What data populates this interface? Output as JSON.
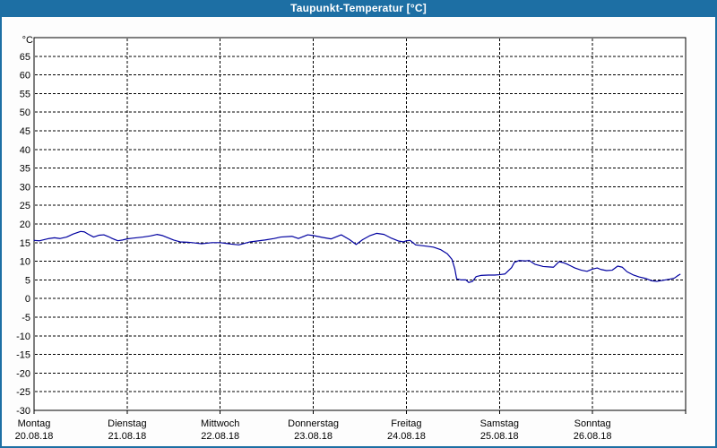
{
  "window": {
    "title": "Taupunkt-Temperatur [°C]",
    "titlebar_color": "#1D6FA4",
    "frame_color": "#1D6FA4",
    "background_color": "#FDFDFD",
    "title_text_color": "#FFFFFF"
  },
  "chart_data": {
    "type": "line",
    "title": "Taupunkt-Temperatur [°C]",
    "grid": {
      "horizontal": "dashed",
      "vertical": "dashed-at-day-boundaries"
    },
    "plot_colors": {
      "plot_background": "#FFFFFF",
      "axis": "#000000",
      "gridline": "#000000",
      "label_text": "#000000"
    },
    "y_axis": {
      "unit_label": "°C",
      "min": -30,
      "max": 70,
      "tick_step": 5,
      "tick_labels": [
        65,
        60,
        55,
        50,
        45,
        40,
        35,
        30,
        25,
        20,
        15,
        10,
        5,
        0,
        -5,
        -10,
        -15,
        -20,
        -25,
        -30
      ]
    },
    "x_axis": {
      "days": [
        {
          "name": "Montag",
          "date": "20.08.18"
        },
        {
          "name": "Dienstag",
          "date": "21.08.18"
        },
        {
          "name": "Mittwoch",
          "date": "22.08.18"
        },
        {
          "name": "Donnerstag",
          "date": "23.08.18"
        },
        {
          "name": "Freitag",
          "date": "24.08.18"
        },
        {
          "name": "Samstag",
          "date": "25.08.18"
        },
        {
          "name": "Sonntag",
          "date": "26.08.18"
        }
      ]
    },
    "series": [
      {
        "name": "Taupunkt-Temperatur",
        "color": "#0000A0",
        "x_unit": "days_since_monday_00h",
        "points": [
          [
            0.0,
            15.6
          ],
          [
            0.06,
            15.5
          ],
          [
            0.16,
            16.1
          ],
          [
            0.22,
            16.3
          ],
          [
            0.28,
            16.1
          ],
          [
            0.35,
            16.5
          ],
          [
            0.42,
            17.3
          ],
          [
            0.5,
            18.0
          ],
          [
            0.54,
            17.9
          ],
          [
            0.58,
            17.3
          ],
          [
            0.64,
            16.5
          ],
          [
            0.7,
            17.0
          ],
          [
            0.75,
            17.1
          ],
          [
            0.8,
            16.6
          ],
          [
            0.84,
            16.1
          ],
          [
            0.9,
            15.5
          ],
          [
            0.95,
            15.7
          ],
          [
            1.0,
            16.0
          ],
          [
            1.06,
            16.2
          ],
          [
            1.17,
            16.5
          ],
          [
            1.25,
            16.8
          ],
          [
            1.32,
            17.2
          ],
          [
            1.38,
            16.9
          ],
          [
            1.44,
            16.3
          ],
          [
            1.5,
            15.7
          ],
          [
            1.57,
            15.2
          ],
          [
            1.65,
            15.1
          ],
          [
            1.7,
            15.0
          ],
          [
            1.8,
            14.7
          ],
          [
            1.91,
            15.0
          ],
          [
            2.0,
            15.0
          ],
          [
            2.12,
            14.6
          ],
          [
            2.2,
            14.4
          ],
          [
            2.32,
            15.2
          ],
          [
            2.48,
            15.7
          ],
          [
            2.58,
            16.1
          ],
          [
            2.65,
            16.5
          ],
          [
            2.77,
            16.7
          ],
          [
            2.84,
            16.1
          ],
          [
            2.94,
            17.1
          ],
          [
            3.0,
            16.9
          ],
          [
            3.1,
            16.4
          ],
          [
            3.19,
            16.0
          ],
          [
            3.3,
            17.1
          ],
          [
            3.39,
            15.8
          ],
          [
            3.46,
            14.5
          ],
          [
            3.53,
            15.8
          ],
          [
            3.61,
            16.9
          ],
          [
            3.68,
            17.5
          ],
          [
            3.76,
            17.2
          ],
          [
            3.83,
            16.3
          ],
          [
            3.92,
            15.4
          ],
          [
            3.97,
            15.2
          ],
          [
            4.0,
            15.5
          ],
          [
            4.04,
            15.6
          ],
          [
            4.1,
            14.4
          ],
          [
            4.2,
            14.1
          ],
          [
            4.29,
            13.8
          ],
          [
            4.37,
            13.1
          ],
          [
            4.44,
            12.0
          ],
          [
            4.49,
            10.5
          ],
          [
            4.52,
            8.0
          ],
          [
            4.54,
            5.3
          ],
          [
            4.59,
            5.0
          ],
          [
            4.64,
            5.0
          ],
          [
            4.67,
            4.3
          ],
          [
            4.71,
            4.6
          ],
          [
            4.75,
            5.9
          ],
          [
            4.8,
            6.2
          ],
          [
            4.88,
            6.3
          ],
          [
            4.95,
            6.3
          ],
          [
            5.0,
            6.4
          ],
          [
            5.06,
            6.6
          ],
          [
            5.13,
            8.3
          ],
          [
            5.16,
            9.7
          ],
          [
            5.21,
            10.2
          ],
          [
            5.28,
            10.1
          ],
          [
            5.32,
            10.2
          ],
          [
            5.38,
            9.2
          ],
          [
            5.47,
            8.6
          ],
          [
            5.53,
            8.5
          ],
          [
            5.58,
            8.4
          ],
          [
            5.64,
            9.9
          ],
          [
            5.69,
            9.6
          ],
          [
            5.73,
            9.2
          ],
          [
            5.81,
            8.2
          ],
          [
            5.88,
            7.6
          ],
          [
            5.94,
            7.3
          ],
          [
            6.0,
            7.9
          ],
          [
            6.05,
            8.2
          ],
          [
            6.09,
            7.8
          ],
          [
            6.15,
            7.5
          ],
          [
            6.21,
            7.6
          ],
          [
            6.27,
            8.7
          ],
          [
            6.32,
            8.4
          ],
          [
            6.37,
            7.2
          ],
          [
            6.44,
            6.3
          ],
          [
            6.5,
            5.8
          ],
          [
            6.57,
            5.4
          ],
          [
            6.63,
            4.8
          ],
          [
            6.69,
            4.6
          ],
          [
            6.76,
            4.9
          ],
          [
            6.83,
            5.2
          ],
          [
            6.88,
            5.5
          ],
          [
            6.92,
            6.2
          ],
          [
            6.94,
            6.5
          ]
        ]
      }
    ]
  }
}
